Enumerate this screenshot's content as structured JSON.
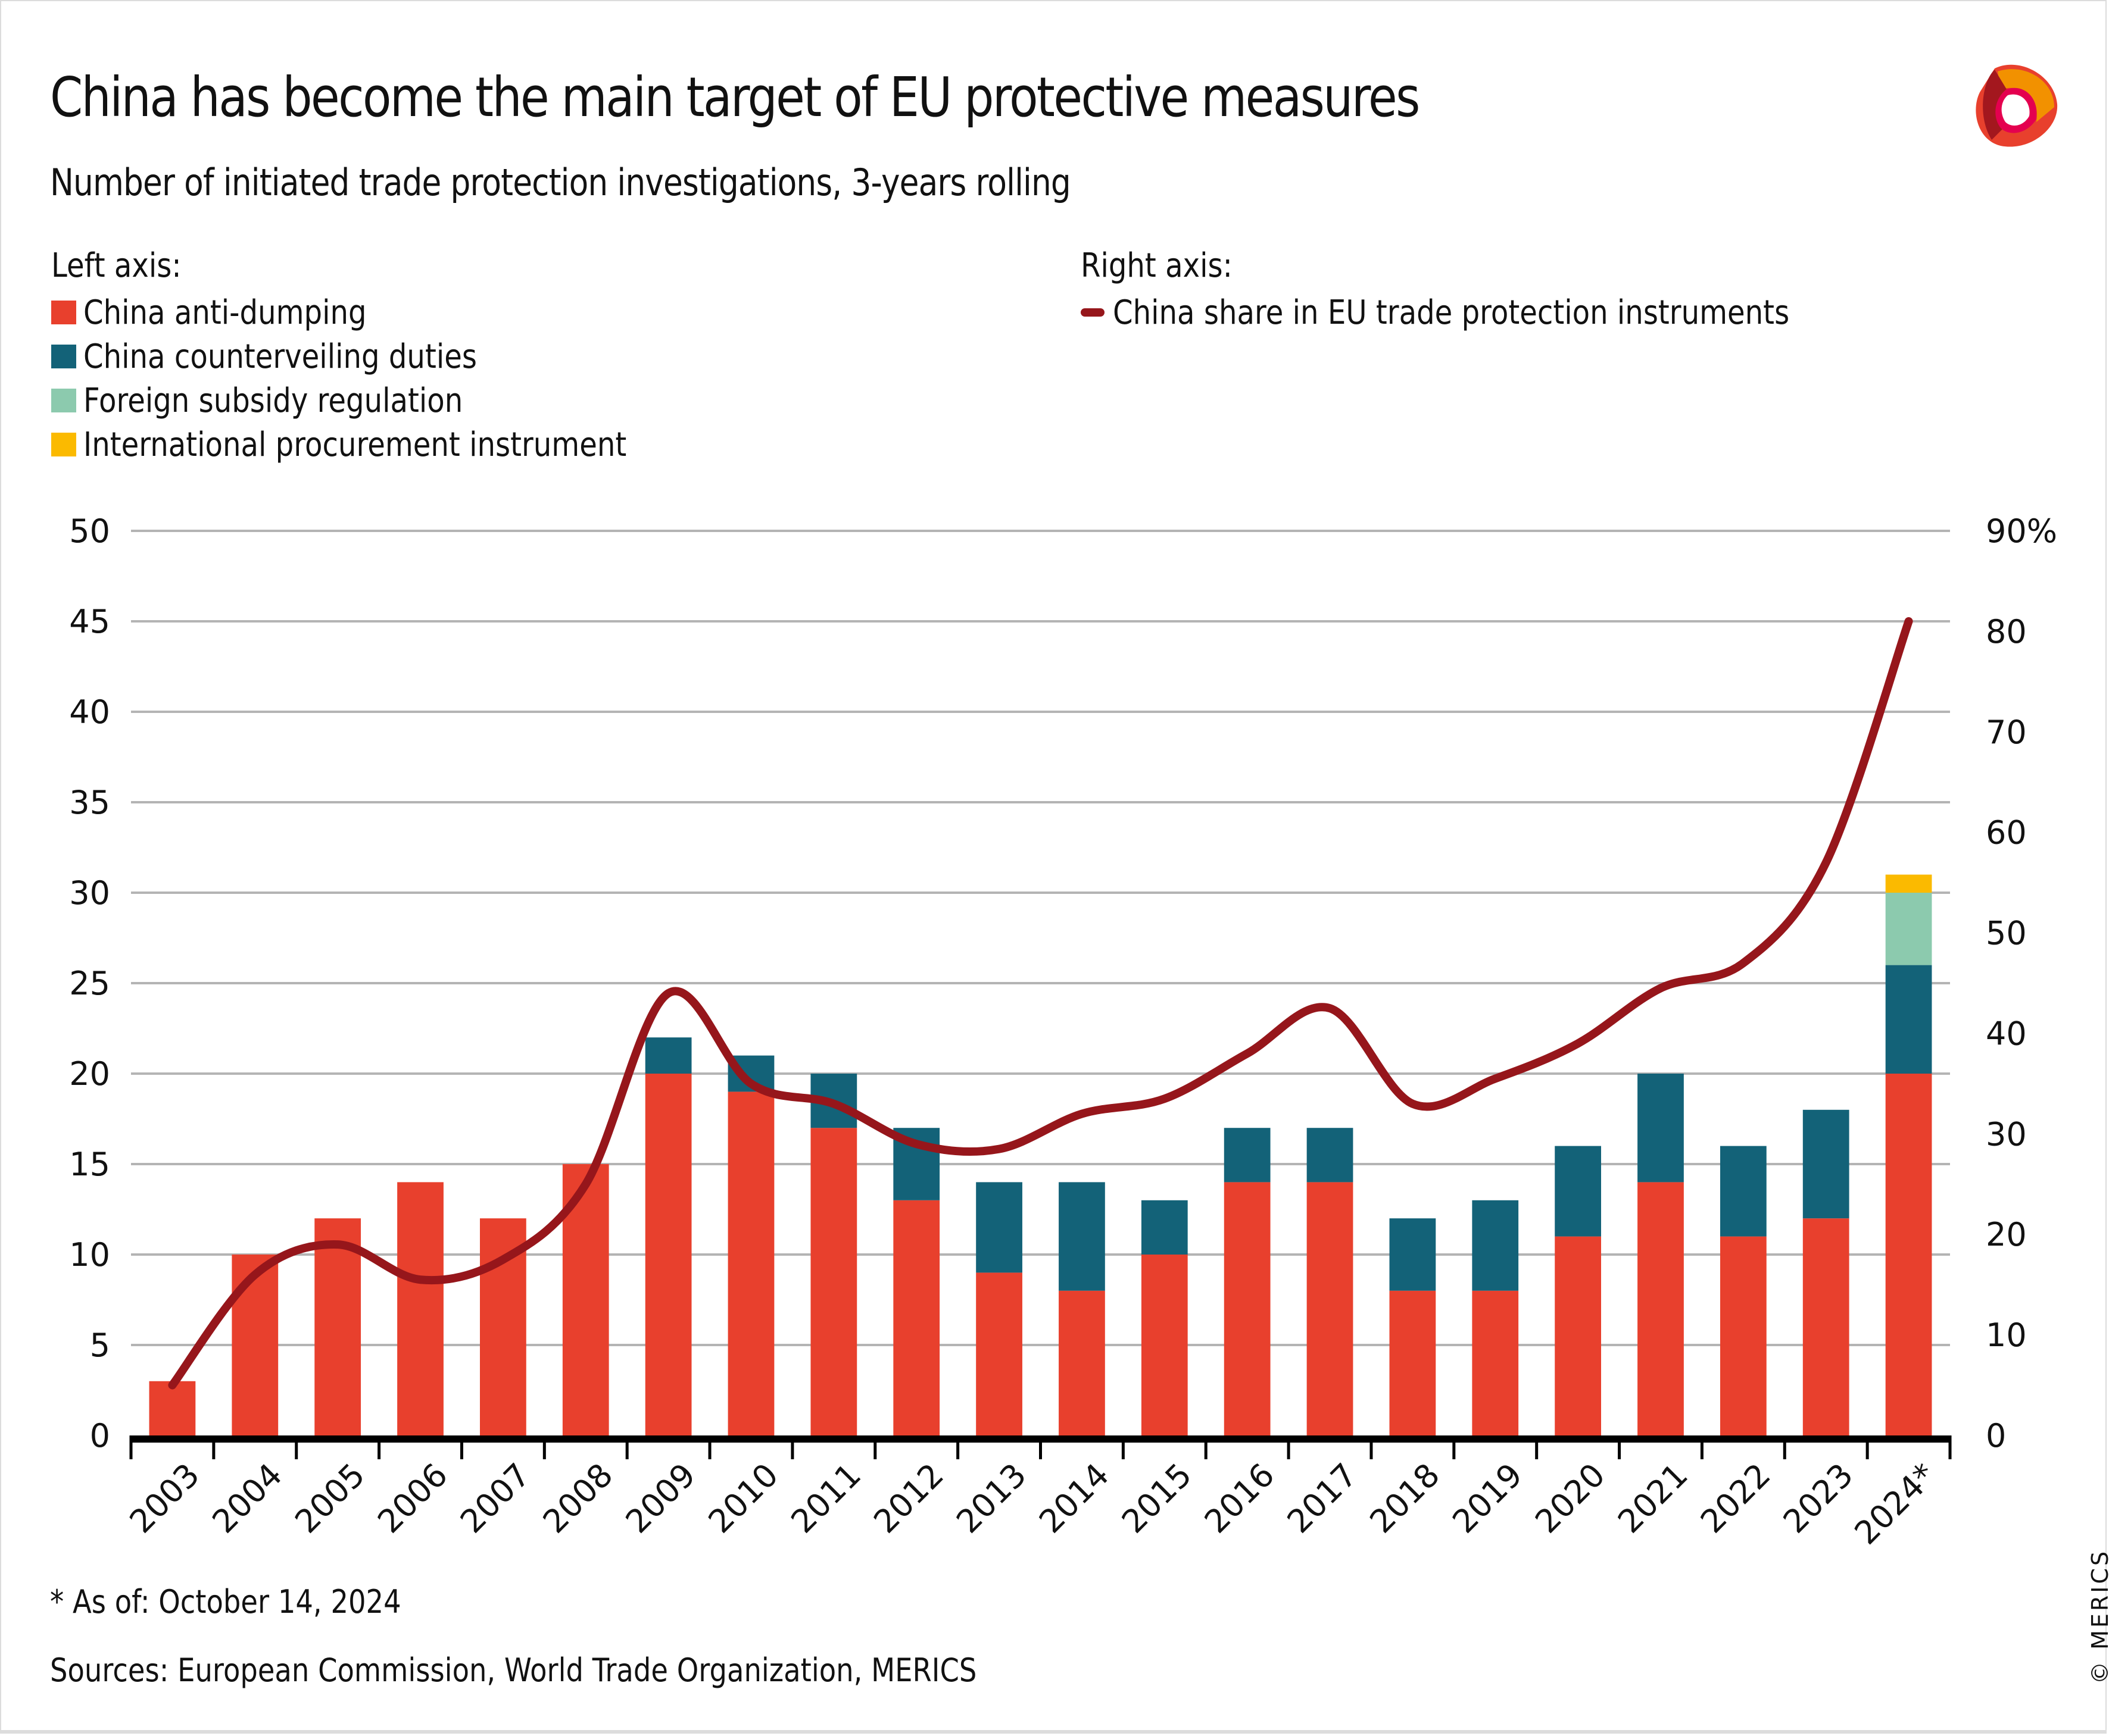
{
  "title": "China has become the main target of EU protective measures",
  "subtitle": "Number of initiated trade protection investigations, 3-years rolling",
  "legend": {
    "left_heading": "Left axis:",
    "right_heading": "Right axis:",
    "left_items": [
      {
        "label": "China anti-dumping",
        "color": "#E8402D"
      },
      {
        "label": "China counterveiling duties",
        "color": "#136278"
      },
      {
        "label": "Foreign subsidy regulation",
        "color": "#8CCAAE"
      },
      {
        "label": "International procurement instrument",
        "color": "#FBBA00"
      }
    ],
    "right_items": [
      {
        "label": "China share in EU trade protection instruments",
        "color": "#96161B"
      }
    ]
  },
  "footnote": "* As of: October 14, 2024",
  "sources": "Sources: European Commission, World Trade Organization, MERICS",
  "copyright": "© MERICS",
  "logo": "merics-logo-icon",
  "chart_data": {
    "type": "bar",
    "stacked": true,
    "title": "China has become the main target of EU protective measures",
    "subtitle": "Number of initiated trade protection investigations, 3-years rolling",
    "categories": [
      "2003",
      "2004",
      "2005",
      "2006",
      "2007",
      "2008",
      "2009",
      "2010",
      "2011",
      "2012",
      "2013",
      "2014",
      "2015",
      "2016",
      "2017",
      "2018",
      "2019",
      "2020",
      "2021",
      "2022",
      "2023",
      "2024*"
    ],
    "series": [
      {
        "name": "China anti-dumping",
        "axis": "left",
        "type": "bar",
        "color": "#E8402D",
        "values": [
          3,
          10,
          12,
          14,
          12,
          15,
          20,
          19,
          17,
          13,
          9,
          8,
          10,
          14,
          14,
          8,
          8,
          11,
          14,
          11,
          12,
          20
        ]
      },
      {
        "name": "China counterveiling duties",
        "axis": "left",
        "type": "bar",
        "color": "#136278",
        "values": [
          0,
          0,
          0,
          0,
          0,
          0,
          2,
          2,
          3,
          4,
          5,
          6,
          3,
          3,
          3,
          4,
          5,
          5,
          6,
          5,
          6,
          6
        ]
      },
      {
        "name": "Foreign subsidy regulation",
        "axis": "left",
        "type": "bar",
        "color": "#8CCAAE",
        "values": [
          0,
          0,
          0,
          0,
          0,
          0,
          0,
          0,
          0,
          0,
          0,
          0,
          0,
          0,
          0,
          0,
          0,
          0,
          0,
          0,
          0,
          4
        ]
      },
      {
        "name": "International procurement instrument",
        "axis": "left",
        "type": "bar",
        "color": "#FBBA00",
        "values": [
          0,
          0,
          0,
          0,
          0,
          0,
          0,
          0,
          0,
          0,
          0,
          0,
          0,
          0,
          0,
          0,
          0,
          0,
          0,
          0,
          0,
          1
        ]
      },
      {
        "name": "China share in EU trade protection instruments",
        "axis": "right",
        "type": "line",
        "color": "#96161B",
        "values": [
          5,
          16,
          19,
          15.5,
          17.5,
          25,
          44,
          35,
          33,
          29,
          28.5,
          32,
          33.5,
          38,
          42.5,
          33,
          35.5,
          39,
          44.5,
          47,
          57,
          81
        ]
      }
    ],
    "left_axis": {
      "ylim": [
        0,
        50
      ],
      "ticks": [
        "0",
        "5",
        "10",
        "15",
        "20",
        "25",
        "30",
        "35",
        "40",
        "45",
        "50"
      ]
    },
    "right_axis": {
      "ylim": [
        0,
        90
      ],
      "ticks": [
        "0",
        "10",
        "20",
        "30",
        "40",
        "50",
        "60",
        "70",
        "80",
        "90%"
      ]
    },
    "xlabel": "",
    "ylabel": "",
    "grid": true,
    "legend_position": "top"
  }
}
